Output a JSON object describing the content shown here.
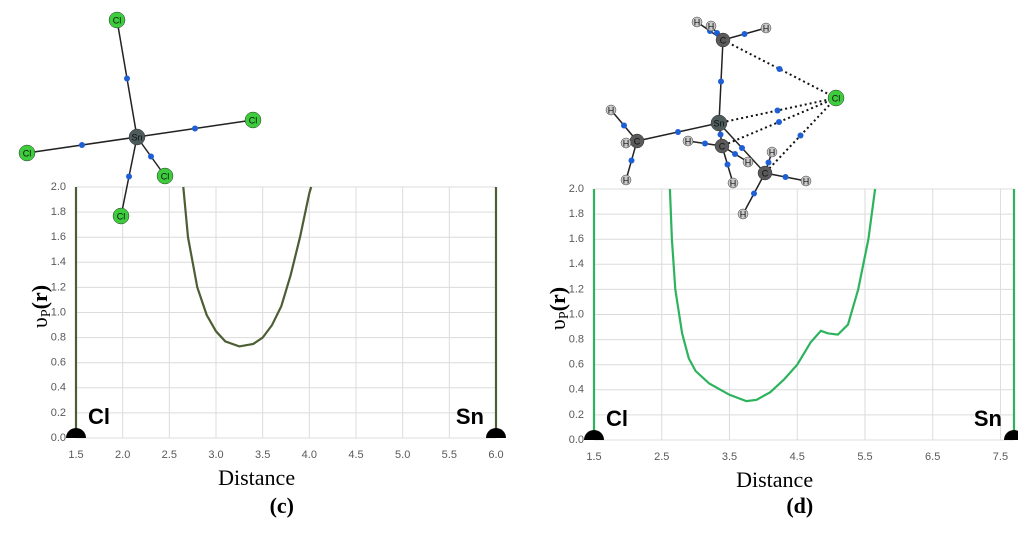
{
  "chart_data": [
    {
      "type": "line",
      "panel_label": "(c)",
      "xlabel": "Distance",
      "ylabel": [
        "υ",
        "P",
        "(r)"
      ],
      "grid": true,
      "xlim": [
        1.5,
        6.0
      ],
      "ylim": [
        0,
        2.0
      ],
      "xticks": [
        1.5,
        {
          "value": 2,
          "label": "2.0"
        },
        2.5,
        {
          "value": 3,
          "label": "3.0"
        },
        3.5,
        {
          "value": 4,
          "label": "4.0"
        },
        4.5,
        {
          "value": 5,
          "label": "5.0"
        },
        5.5,
        {
          "value": 6,
          "label": "6.0"
        }
      ],
      "yticks": [
        {
          "value": 0,
          "label": "0.0"
        },
        0.2,
        0.4,
        0.6,
        0.8,
        {
          "value": 1,
          "label": "1.0"
        },
        1.2,
        1.4,
        1.6,
        1.8,
        {
          "value": 2,
          "label": "2.0"
        }
      ],
      "series": [
        {
          "color": "#4b5e34",
          "x": [
            1.5,
            1.5,
            null,
            2.65,
            2.7,
            2.8,
            2.9,
            3.0,
            3.1,
            3.25,
            3.4,
            3.5,
            3.6,
            3.7,
            3.8,
            3.9,
            4.0,
            4.02,
            null,
            6.0,
            6.0
          ],
          "values": [
            0,
            2.0,
            null,
            2.0,
            1.6,
            1.2,
            0.98,
            0.85,
            0.77,
            0.73,
            0.75,
            0.8,
            0.9,
            1.05,
            1.3,
            1.6,
            1.95,
            2.0,
            null,
            0,
            2.0
          ]
        }
      ],
      "nuclei": [
        {
          "label": "Cl",
          "x": 1.5
        },
        {
          "label": "Sn",
          "x": 6.0
        }
      ],
      "molecule": {
        "atoms": [
          "Sn",
          "Cl",
          "Cl",
          "Cl",
          "Cl",
          "Cl"
        ]
      }
    },
    {
      "type": "line",
      "panel_label": "(d)",
      "xlabel": "Distance",
      "ylabel": [
        "υ",
        "P",
        "(r)"
      ],
      "grid": true,
      "xlim": [
        1.5,
        7.7
      ],
      "ylim": [
        0,
        2.0
      ],
      "xticks": [
        1.5,
        2.5,
        3.5,
        4.5,
        5.5,
        6.5,
        7.5
      ],
      "yticks": [
        {
          "value": 0,
          "label": "0.0"
        },
        0.2,
        0.4,
        0.6,
        0.8,
        {
          "value": 1,
          "label": "1.0"
        },
        1.2,
        1.4,
        1.6,
        1.8,
        {
          "value": 2,
          "label": "2.0"
        }
      ],
      "series": [
        {
          "color": "#2db35d",
          "x": [
            1.5,
            1.5,
            null,
            2.62,
            2.65,
            2.7,
            2.8,
            2.9,
            3.0,
            3.2,
            3.5,
            3.75,
            3.9,
            4.1,
            4.3,
            4.5,
            4.7,
            4.85,
            4.95,
            5.1,
            5.25,
            5.4,
            5.55,
            5.65,
            null,
            7.7,
            7.7
          ],
          "values": [
            0,
            2.0,
            null,
            2.0,
            1.6,
            1.2,
            0.85,
            0.65,
            0.55,
            0.45,
            0.36,
            0.31,
            0.32,
            0.38,
            0.48,
            0.6,
            0.78,
            0.87,
            0.85,
            0.84,
            0.92,
            1.2,
            1.6,
            2.0,
            null,
            0,
            2.0
          ]
        }
      ],
      "nuclei": [
        {
          "label": "Cl",
          "x": 1.5
        },
        {
          "label": "Sn",
          "x": 7.7
        }
      ],
      "molecule": {
        "atoms": [
          "Sn",
          "C",
          "C",
          "C",
          "C",
          "Cl",
          "H",
          "H",
          "H",
          "H",
          "H",
          "H",
          "H",
          "H",
          "H",
          "H",
          "H",
          "H"
        ]
      }
    }
  ]
}
